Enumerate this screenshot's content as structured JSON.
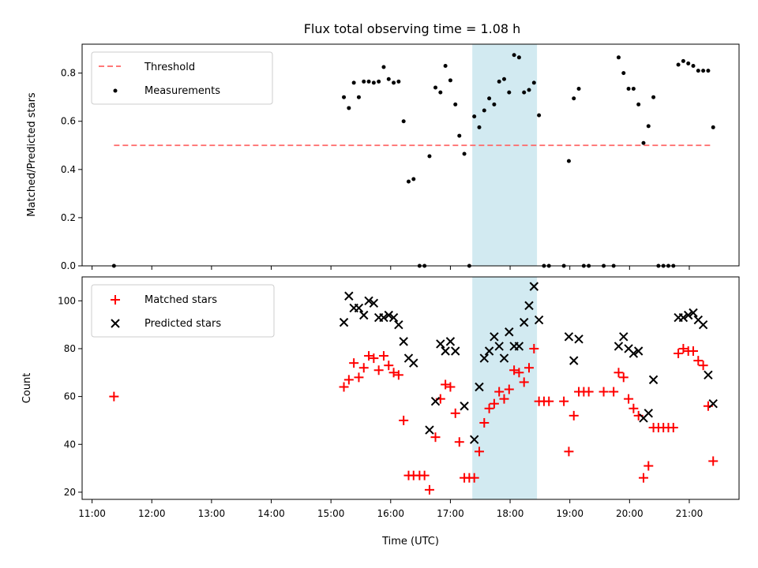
{
  "chart_data": [
    {
      "type": "scatter",
      "title": "Flux total observing time = 1.08 h",
      "xlabel": "",
      "ylabel": "Matched/Predicted stars",
      "ylim": [
        0,
        0.92
      ],
      "yticks": [
        "0.0",
        "0.2",
        "0.4",
        "0.6",
        "0.8"
      ],
      "ytick_values": [
        0,
        0.2,
        0.4,
        0.6,
        0.8
      ],
      "legend_position": "upper-left",
      "highlight_band": {
        "x0": "17:22",
        "x1": "18:27",
        "color": "#add8e6"
      },
      "threshold": {
        "name": "Threshold",
        "y": 0.5,
        "x0": "11:22",
        "x1": "21:23",
        "color": "#ff6666",
        "style": "dashed"
      },
      "series": [
        {
          "name": "Measurements",
          "color": "#000000",
          "points": [
            [
              "11:22",
              0.0
            ],
            [
              "15:13",
              0.7
            ],
            [
              "15:18",
              0.655
            ],
            [
              "15:23",
              0.76
            ],
            [
              "15:28",
              0.7
            ],
            [
              "15:33",
              0.765
            ],
            [
              "15:38",
              0.765
            ],
            [
              "15:43",
              0.76
            ],
            [
              "15:48",
              0.765
            ],
            [
              "15:53",
              0.825
            ],
            [
              "15:58",
              0.775
            ],
            [
              "16:03",
              0.76
            ],
            [
              "16:08",
              0.765
            ],
            [
              "16:13",
              0.6
            ],
            [
              "16:18",
              0.35
            ],
            [
              "16:23",
              0.36
            ],
            [
              "16:29",
              0.0
            ],
            [
              "16:34",
              0.0
            ],
            [
              "16:39",
              0.455
            ],
            [
              "16:45",
              0.74
            ],
            [
              "16:50",
              0.72
            ],
            [
              "16:55",
              0.83
            ],
            [
              "17:00",
              0.77
            ],
            [
              "17:05",
              0.67
            ],
            [
              "17:09",
              0.54
            ],
            [
              "17:14",
              0.465
            ],
            [
              "17:19",
              0.0
            ],
            [
              "17:24",
              0.62
            ],
            [
              "17:29",
              0.575
            ],
            [
              "17:34",
              0.645
            ],
            [
              "17:39",
              0.695
            ],
            [
              "17:44",
              0.67
            ],
            [
              "17:49",
              0.765
            ],
            [
              "17:54",
              0.775
            ],
            [
              "17:59",
              0.72
            ],
            [
              "18:04",
              0.875
            ],
            [
              "18:09",
              0.865
            ],
            [
              "18:14",
              0.72
            ],
            [
              "18:19",
              0.73
            ],
            [
              "18:24",
              0.76
            ],
            [
              "18:29",
              0.625
            ],
            [
              "18:34",
              0.0
            ],
            [
              "18:39",
              0.0
            ],
            [
              "18:54",
              0.0
            ],
            [
              "18:59",
              0.435
            ],
            [
              "19:04",
              0.695
            ],
            [
              "19:09",
              0.735
            ],
            [
              "19:14",
              0.0
            ],
            [
              "19:19",
              0.0
            ],
            [
              "19:34",
              0.0
            ],
            [
              "19:44",
              0.0
            ],
            [
              "19:49",
              0.865
            ],
            [
              "19:54",
              0.8
            ],
            [
              "19:59",
              0.735
            ],
            [
              "20:04",
              0.735
            ],
            [
              "20:09",
              0.67
            ],
            [
              "20:14",
              0.51
            ],
            [
              "20:19",
              0.58
            ],
            [
              "20:24",
              0.7
            ],
            [
              "20:29",
              0.0
            ],
            [
              "20:34",
              0.0
            ],
            [
              "20:39",
              0.0
            ],
            [
              "20:44",
              0.0
            ],
            [
              "20:49",
              0.835
            ],
            [
              "20:54",
              0.85
            ],
            [
              "20:59",
              0.84
            ],
            [
              "21:04",
              0.83
            ],
            [
              "21:09",
              0.81
            ],
            [
              "21:14",
              0.81
            ],
            [
              "21:19",
              0.81
            ],
            [
              "21:24",
              0.575
            ]
          ]
        }
      ]
    },
    {
      "type": "scatter",
      "title": "",
      "xlabel": "Time (UTC)",
      "ylabel": "Count",
      "ylim": [
        17,
        110
      ],
      "yticks": [
        "20",
        "40",
        "60",
        "80",
        "100"
      ],
      "ytick_values": [
        20,
        40,
        60,
        80,
        100
      ],
      "xticks": [
        "11:00",
        "12:00",
        "13:00",
        "14:00",
        "15:00",
        "16:00",
        "17:00",
        "18:00",
        "19:00",
        "20:00",
        "21:00"
      ],
      "xlim": [
        "10:50",
        "21:50"
      ],
      "legend_position": "upper-left",
      "highlight_band": {
        "x0": "17:22",
        "x1": "18:27",
        "color": "#add8e6"
      },
      "series": [
        {
          "name": "Matched stars",
          "color": "#ff0000",
          "marker": "plus",
          "points": [
            [
              "11:22",
              60
            ],
            [
              "15:13",
              64
            ],
            [
              "15:18",
              67
            ],
            [
              "15:23",
              74
            ],
            [
              "15:28",
              68
            ],
            [
              "15:33",
              72
            ],
            [
              "15:38",
              77
            ],
            [
              "15:43",
              76
            ],
            [
              "15:48",
              71
            ],
            [
              "15:53",
              77
            ],
            [
              "15:58",
              73
            ],
            [
              "16:03",
              70
            ],
            [
              "16:08",
              69
            ],
            [
              "16:13",
              50
            ],
            [
              "16:18",
              27
            ],
            [
              "16:23",
              27
            ],
            [
              "16:29",
              27
            ],
            [
              "16:34",
              27
            ],
            [
              "16:39",
              21
            ],
            [
              "16:45",
              43
            ],
            [
              "16:50",
              59
            ],
            [
              "16:55",
              65
            ],
            [
              "17:00",
              64
            ],
            [
              "17:05",
              53
            ],
            [
              "17:09",
              41
            ],
            [
              "17:14",
              26
            ],
            [
              "17:19",
              26
            ],
            [
              "17:24",
              26
            ],
            [
              "17:29",
              37
            ],
            [
              "17:34",
              49
            ],
            [
              "17:39",
              55
            ],
            [
              "17:44",
              57
            ],
            [
              "17:49",
              62
            ],
            [
              "17:54",
              59
            ],
            [
              "17:59",
              63
            ],
            [
              "18:04",
              71
            ],
            [
              "18:09",
              70
            ],
            [
              "18:14",
              66
            ],
            [
              "18:19",
              72
            ],
            [
              "18:24",
              80
            ],
            [
              "18:29",
              58
            ],
            [
              "18:34",
              58
            ],
            [
              "18:39",
              58
            ],
            [
              "18:54",
              58
            ],
            [
              "18:59",
              37
            ],
            [
              "19:04",
              52
            ],
            [
              "19:09",
              62
            ],
            [
              "19:14",
              62
            ],
            [
              "19:19",
              62
            ],
            [
              "19:34",
              62
            ],
            [
              "19:44",
              62
            ],
            [
              "19:49",
              70
            ],
            [
              "19:54",
              68
            ],
            [
              "19:59",
              59
            ],
            [
              "20:04",
              55
            ],
            [
              "20:09",
              52
            ],
            [
              "20:14",
              26
            ],
            [
              "20:19",
              31
            ],
            [
              "20:24",
              47
            ],
            [
              "20:29",
              47
            ],
            [
              "20:34",
              47
            ],
            [
              "20:39",
              47
            ],
            [
              "20:44",
              47
            ],
            [
              "20:49",
              78
            ],
            [
              "20:54",
              80
            ],
            [
              "20:59",
              79
            ],
            [
              "21:04",
              79
            ],
            [
              "21:09",
              75
            ],
            [
              "21:14",
              73
            ],
            [
              "21:19",
              56
            ],
            [
              "21:24",
              33
            ]
          ]
        },
        {
          "name": "Predicted stars",
          "color": "#000000",
          "marker": "x",
          "points": [
            [
              "15:13",
              91
            ],
            [
              "15:18",
              102
            ],
            [
              "15:23",
              97
            ],
            [
              "15:28",
              97
            ],
            [
              "15:33",
              94
            ],
            [
              "15:38",
              100
            ],
            [
              "15:43",
              99
            ],
            [
              "15:48",
              93
            ],
            [
              "15:53",
              93
            ],
            [
              "15:58",
              94
            ],
            [
              "16:03",
              93
            ],
            [
              "16:08",
              90
            ],
            [
              "16:13",
              83
            ],
            [
              "16:18",
              76
            ],
            [
              "16:23",
              74
            ],
            [
              "16:39",
              46
            ],
            [
              "16:45",
              58
            ],
            [
              "16:50",
              82
            ],
            [
              "16:55",
              79
            ],
            [
              "17:00",
              83
            ],
            [
              "17:05",
              79
            ],
            [
              "17:14",
              56
            ],
            [
              "17:24",
              42
            ],
            [
              "17:29",
              64
            ],
            [
              "17:34",
              76
            ],
            [
              "17:39",
              79
            ],
            [
              "17:44",
              85
            ],
            [
              "17:49",
              81
            ],
            [
              "17:54",
              76
            ],
            [
              "17:59",
              87
            ],
            [
              "18:04",
              81
            ],
            [
              "18:09",
              81
            ],
            [
              "18:14",
              91
            ],
            [
              "18:19",
              98
            ],
            [
              "18:24",
              106
            ],
            [
              "18:29",
              92
            ],
            [
              "18:59",
              85
            ],
            [
              "19:04",
              75
            ],
            [
              "19:09",
              84
            ],
            [
              "19:49",
              81
            ],
            [
              "19:54",
              85
            ],
            [
              "19:59",
              80
            ],
            [
              "20:04",
              78
            ],
            [
              "20:09",
              79
            ],
            [
              "20:14",
              51
            ],
            [
              "20:19",
              53
            ],
            [
              "20:24",
              67
            ],
            [
              "20:49",
              93
            ],
            [
              "20:54",
              93
            ],
            [
              "20:59",
              94
            ],
            [
              "21:04",
              95
            ],
            [
              "21:09",
              92
            ],
            [
              "21:14",
              90
            ],
            [
              "21:19",
              69
            ],
            [
              "21:24",
              57
            ]
          ]
        }
      ]
    }
  ]
}
